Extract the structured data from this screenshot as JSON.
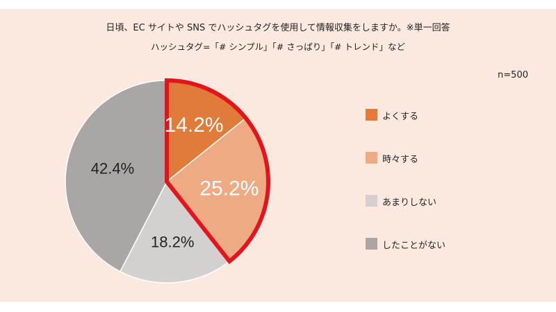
{
  "header": {
    "title": "日頃、EC サイトや SNS でハッシュタグを使用して情報収集をしますか。※単一回答",
    "subtitle": "ハッシュタグ=「# シンプル」「# さっぱり」「# トレンド」など",
    "sample": "n=500"
  },
  "chart_data": {
    "type": "pie",
    "title": "日頃、EC サイトや SNS でハッシュタグを使用して情報収集をしますか。※単一回答",
    "subtitle": "ハッシュタグ=「# シンプル」「# さっぱり」「# トレンド」など",
    "sample_size": "n=500",
    "categories": [
      "よくする",
      "時々する",
      "あまりしない",
      "したことがない"
    ],
    "values": [
      14.2,
      25.2,
      18.2,
      42.4
    ],
    "value_labels": [
      "14.2%",
      "25.2%",
      "18.2%",
      "42.4%"
    ],
    "colors": [
      "#e07b3a",
      "#edaa83",
      "#d3d0cf",
      "#aba6a6"
    ],
    "label_colors": [
      "#ffffff",
      "#ffffff",
      "#222222",
      "#222222"
    ],
    "highlight": {
      "slices": [
        0,
        1
      ],
      "color": "#e3141c"
    },
    "start": "top, clockwise",
    "legend_position": "right"
  }
}
